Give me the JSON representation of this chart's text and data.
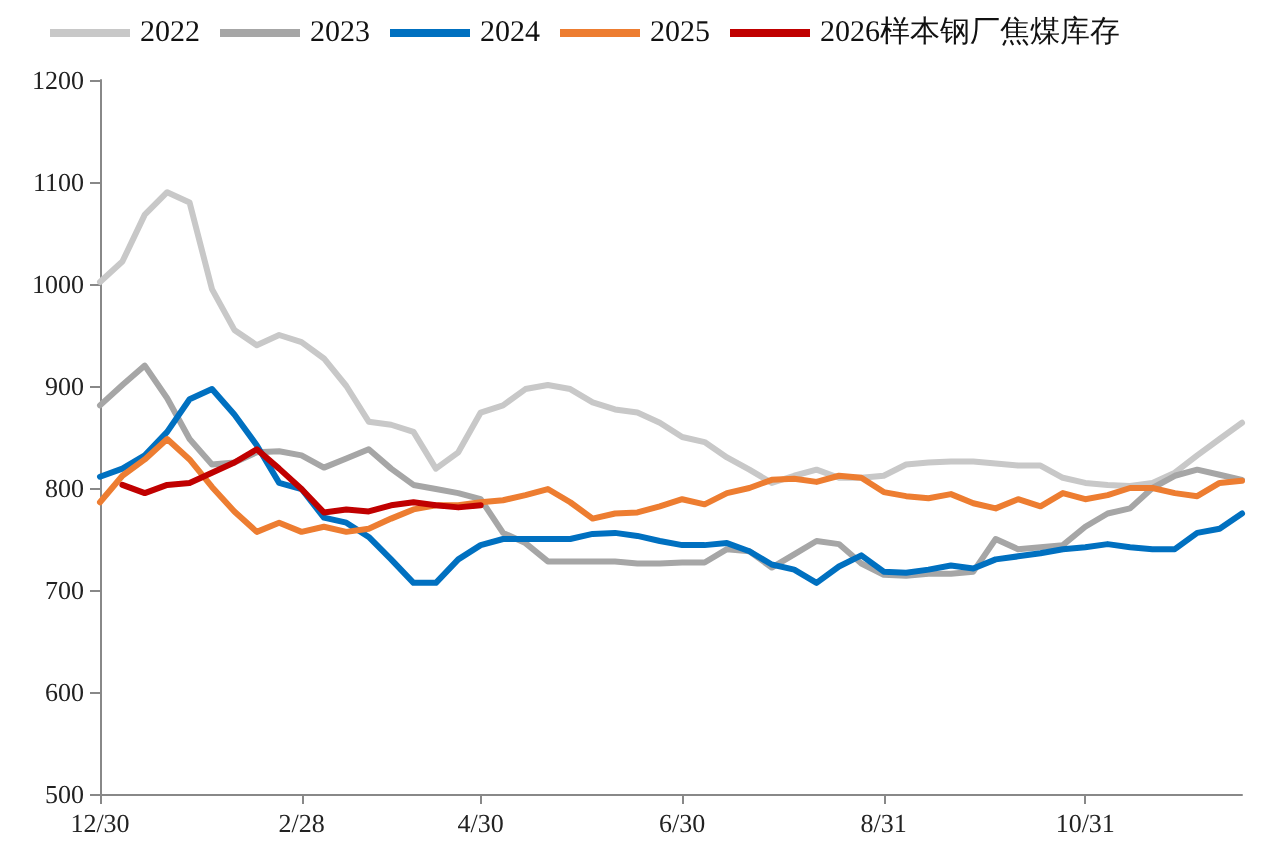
{
  "chart_data": {
    "type": "line",
    "categories": [
      "12/30",
      null,
      null,
      null,
      null,
      null,
      null,
      null,
      null,
      "2/28",
      null,
      null,
      null,
      null,
      null,
      null,
      null,
      "4/30",
      null,
      null,
      null,
      null,
      null,
      null,
      null,
      null,
      "6/30",
      null,
      null,
      null,
      null,
      null,
      null,
      null,
      null,
      "8/31",
      null,
      null,
      null,
      null,
      null,
      null,
      null,
      null,
      "10/31",
      null,
      null,
      null,
      null,
      null,
      null,
      null
    ],
    "series": [
      {
        "name": "2022",
        "color": "#c8c8c8",
        "values": [
          1002,
          1022,
          1068,
          1090,
          1080,
          995,
          955,
          940,
          950,
          943,
          927,
          900,
          865,
          862,
          855,
          819,
          835,
          874,
          881,
          897,
          901,
          897,
          884,
          877,
          874,
          864,
          850,
          845,
          830,
          818,
          805,
          812,
          818,
          810,
          810,
          812,
          823,
          825,
          826,
          826,
          824,
          822,
          822,
          810,
          805,
          803,
          802,
          805,
          815,
          832,
          848,
          864
        ]
      },
      {
        "name": "2023",
        "color": "#a6a6a6",
        "values": [
          881,
          901,
          920,
          888,
          848,
          823,
          825,
          835,
          836,
          832,
          820,
          829,
          838,
          819,
          803,
          799,
          795,
          789,
          756,
          746,
          728,
          728,
          728,
          728,
          726,
          726,
          727,
          727,
          740,
          738,
          722,
          735,
          748,
          745,
          726,
          715,
          714,
          716,
          716,
          718,
          750,
          740,
          742,
          744,
          762,
          775,
          780,
          800,
          812,
          818,
          813,
          808
        ]
      },
      {
        "name": "2024",
        "color": "#0070c0",
        "values": [
          811,
          819,
          832,
          855,
          887,
          897,
          872,
          842,
          805,
          799,
          771,
          766,
          752,
          730,
          707,
          707,
          730,
          744,
          750,
          750,
          750,
          750,
          755,
          756,
          753,
          748,
          744,
          744,
          746,
          738,
          725,
          720,
          707,
          723,
          734,
          718,
          717,
          720,
          724,
          721,
          730,
          733,
          736,
          740,
          742,
          745,
          742,
          740,
          740,
          756,
          760,
          775
        ]
      },
      {
        "name": "2025",
        "color": "#ed7d31",
        "values": [
          786,
          812,
          828,
          848,
          828,
          801,
          777,
          757,
          766,
          757,
          762,
          757,
          760,
          770,
          779,
          783,
          783,
          786,
          788,
          793,
          799,
          786,
          770,
          775,
          776,
          782,
          789,
          784,
          795,
          800,
          808,
          809,
          806,
          812,
          810,
          796,
          792,
          790,
          794,
          785,
          780,
          789,
          782,
          795,
          789,
          793,
          800,
          800,
          795,
          792,
          805,
          807
        ]
      },
      {
        "name": "2026样本钢厂焦煤库存",
        "color": "#c00000",
        "values": [
          null,
          803,
          795,
          803,
          805,
          815,
          825,
          838,
          819,
          799,
          776,
          779,
          777,
          783,
          786,
          783,
          781,
          783,
          null,
          null,
          null,
          null,
          null,
          null,
          null,
          null,
          null,
          null,
          null,
          null,
          null,
          null,
          null,
          null,
          null,
          null,
          null,
          null,
          null,
          null,
          null,
          null,
          null,
          null,
          null,
          null,
          null,
          null,
          null,
          null,
          null,
          null
        ]
      }
    ],
    "ylim": [
      500,
      1200
    ],
    "yticks": [
      500,
      600,
      700,
      800,
      900,
      1000,
      1100,
      1200
    ],
    "legend": "top",
    "grid": false,
    "marker": "none",
    "line_style": "solid"
  }
}
